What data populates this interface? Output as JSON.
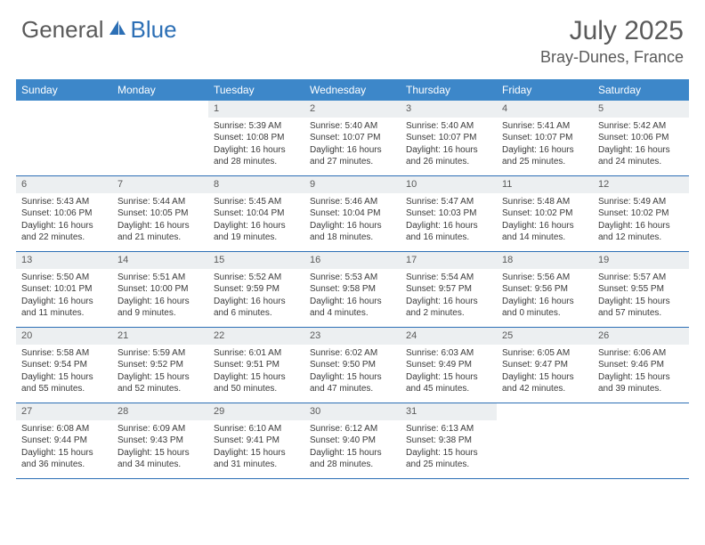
{
  "brand": {
    "text1": "General",
    "text2": "Blue",
    "text1_color": "#5a5a5a",
    "text2_color": "#2c6fb5",
    "icon_color": "#2c6fb5"
  },
  "title": {
    "month": "July 2025",
    "location": "Bray-Dunes, France"
  },
  "colors": {
    "header_bg": "#3d87c9",
    "header_text": "#ffffff",
    "daynum_bg": "#eceff1",
    "daynum_text": "#5a5a5a",
    "border": "#2c6fb5",
    "body_text": "#3a3a3a"
  },
  "day_headers": [
    "Sunday",
    "Monday",
    "Tuesday",
    "Wednesday",
    "Thursday",
    "Friday",
    "Saturday"
  ],
  "weeks": [
    [
      {
        "num": "",
        "sunrise": "",
        "sunset": "",
        "daylight1": "",
        "daylight2": "",
        "empty": true
      },
      {
        "num": "",
        "sunrise": "",
        "sunset": "",
        "daylight1": "",
        "daylight2": "",
        "empty": true
      },
      {
        "num": "1",
        "sunrise": "Sunrise: 5:39 AM",
        "sunset": "Sunset: 10:08 PM",
        "daylight1": "Daylight: 16 hours",
        "daylight2": "and 28 minutes."
      },
      {
        "num": "2",
        "sunrise": "Sunrise: 5:40 AM",
        "sunset": "Sunset: 10:07 PM",
        "daylight1": "Daylight: 16 hours",
        "daylight2": "and 27 minutes."
      },
      {
        "num": "3",
        "sunrise": "Sunrise: 5:40 AM",
        "sunset": "Sunset: 10:07 PM",
        "daylight1": "Daylight: 16 hours",
        "daylight2": "and 26 minutes."
      },
      {
        "num": "4",
        "sunrise": "Sunrise: 5:41 AM",
        "sunset": "Sunset: 10:07 PM",
        "daylight1": "Daylight: 16 hours",
        "daylight2": "and 25 minutes."
      },
      {
        "num": "5",
        "sunrise": "Sunrise: 5:42 AM",
        "sunset": "Sunset: 10:06 PM",
        "daylight1": "Daylight: 16 hours",
        "daylight2": "and 24 minutes."
      }
    ],
    [
      {
        "num": "6",
        "sunrise": "Sunrise: 5:43 AM",
        "sunset": "Sunset: 10:06 PM",
        "daylight1": "Daylight: 16 hours",
        "daylight2": "and 22 minutes."
      },
      {
        "num": "7",
        "sunrise": "Sunrise: 5:44 AM",
        "sunset": "Sunset: 10:05 PM",
        "daylight1": "Daylight: 16 hours",
        "daylight2": "and 21 minutes."
      },
      {
        "num": "8",
        "sunrise": "Sunrise: 5:45 AM",
        "sunset": "Sunset: 10:04 PM",
        "daylight1": "Daylight: 16 hours",
        "daylight2": "and 19 minutes."
      },
      {
        "num": "9",
        "sunrise": "Sunrise: 5:46 AM",
        "sunset": "Sunset: 10:04 PM",
        "daylight1": "Daylight: 16 hours",
        "daylight2": "and 18 minutes."
      },
      {
        "num": "10",
        "sunrise": "Sunrise: 5:47 AM",
        "sunset": "Sunset: 10:03 PM",
        "daylight1": "Daylight: 16 hours",
        "daylight2": "and 16 minutes."
      },
      {
        "num": "11",
        "sunrise": "Sunrise: 5:48 AM",
        "sunset": "Sunset: 10:02 PM",
        "daylight1": "Daylight: 16 hours",
        "daylight2": "and 14 minutes."
      },
      {
        "num": "12",
        "sunrise": "Sunrise: 5:49 AM",
        "sunset": "Sunset: 10:02 PM",
        "daylight1": "Daylight: 16 hours",
        "daylight2": "and 12 minutes."
      }
    ],
    [
      {
        "num": "13",
        "sunrise": "Sunrise: 5:50 AM",
        "sunset": "Sunset: 10:01 PM",
        "daylight1": "Daylight: 16 hours",
        "daylight2": "and 11 minutes."
      },
      {
        "num": "14",
        "sunrise": "Sunrise: 5:51 AM",
        "sunset": "Sunset: 10:00 PM",
        "daylight1": "Daylight: 16 hours",
        "daylight2": "and 9 minutes."
      },
      {
        "num": "15",
        "sunrise": "Sunrise: 5:52 AM",
        "sunset": "Sunset: 9:59 PM",
        "daylight1": "Daylight: 16 hours",
        "daylight2": "and 6 minutes."
      },
      {
        "num": "16",
        "sunrise": "Sunrise: 5:53 AM",
        "sunset": "Sunset: 9:58 PM",
        "daylight1": "Daylight: 16 hours",
        "daylight2": "and 4 minutes."
      },
      {
        "num": "17",
        "sunrise": "Sunrise: 5:54 AM",
        "sunset": "Sunset: 9:57 PM",
        "daylight1": "Daylight: 16 hours",
        "daylight2": "and 2 minutes."
      },
      {
        "num": "18",
        "sunrise": "Sunrise: 5:56 AM",
        "sunset": "Sunset: 9:56 PM",
        "daylight1": "Daylight: 16 hours",
        "daylight2": "and 0 minutes."
      },
      {
        "num": "19",
        "sunrise": "Sunrise: 5:57 AM",
        "sunset": "Sunset: 9:55 PM",
        "daylight1": "Daylight: 15 hours",
        "daylight2": "and 57 minutes."
      }
    ],
    [
      {
        "num": "20",
        "sunrise": "Sunrise: 5:58 AM",
        "sunset": "Sunset: 9:54 PM",
        "daylight1": "Daylight: 15 hours",
        "daylight2": "and 55 minutes."
      },
      {
        "num": "21",
        "sunrise": "Sunrise: 5:59 AM",
        "sunset": "Sunset: 9:52 PM",
        "daylight1": "Daylight: 15 hours",
        "daylight2": "and 52 minutes."
      },
      {
        "num": "22",
        "sunrise": "Sunrise: 6:01 AM",
        "sunset": "Sunset: 9:51 PM",
        "daylight1": "Daylight: 15 hours",
        "daylight2": "and 50 minutes."
      },
      {
        "num": "23",
        "sunrise": "Sunrise: 6:02 AM",
        "sunset": "Sunset: 9:50 PM",
        "daylight1": "Daylight: 15 hours",
        "daylight2": "and 47 minutes."
      },
      {
        "num": "24",
        "sunrise": "Sunrise: 6:03 AM",
        "sunset": "Sunset: 9:49 PM",
        "daylight1": "Daylight: 15 hours",
        "daylight2": "and 45 minutes."
      },
      {
        "num": "25",
        "sunrise": "Sunrise: 6:05 AM",
        "sunset": "Sunset: 9:47 PM",
        "daylight1": "Daylight: 15 hours",
        "daylight2": "and 42 minutes."
      },
      {
        "num": "26",
        "sunrise": "Sunrise: 6:06 AM",
        "sunset": "Sunset: 9:46 PM",
        "daylight1": "Daylight: 15 hours",
        "daylight2": "and 39 minutes."
      }
    ],
    [
      {
        "num": "27",
        "sunrise": "Sunrise: 6:08 AM",
        "sunset": "Sunset: 9:44 PM",
        "daylight1": "Daylight: 15 hours",
        "daylight2": "and 36 minutes."
      },
      {
        "num": "28",
        "sunrise": "Sunrise: 6:09 AM",
        "sunset": "Sunset: 9:43 PM",
        "daylight1": "Daylight: 15 hours",
        "daylight2": "and 34 minutes."
      },
      {
        "num": "29",
        "sunrise": "Sunrise: 6:10 AM",
        "sunset": "Sunset: 9:41 PM",
        "daylight1": "Daylight: 15 hours",
        "daylight2": "and 31 minutes."
      },
      {
        "num": "30",
        "sunrise": "Sunrise: 6:12 AM",
        "sunset": "Sunset: 9:40 PM",
        "daylight1": "Daylight: 15 hours",
        "daylight2": "and 28 minutes."
      },
      {
        "num": "31",
        "sunrise": "Sunrise: 6:13 AM",
        "sunset": "Sunset: 9:38 PM",
        "daylight1": "Daylight: 15 hours",
        "daylight2": "and 25 minutes."
      },
      {
        "num": "",
        "sunrise": "",
        "sunset": "",
        "daylight1": "",
        "daylight2": "",
        "empty": true
      },
      {
        "num": "",
        "sunrise": "",
        "sunset": "",
        "daylight1": "",
        "daylight2": "",
        "empty": true
      }
    ]
  ]
}
